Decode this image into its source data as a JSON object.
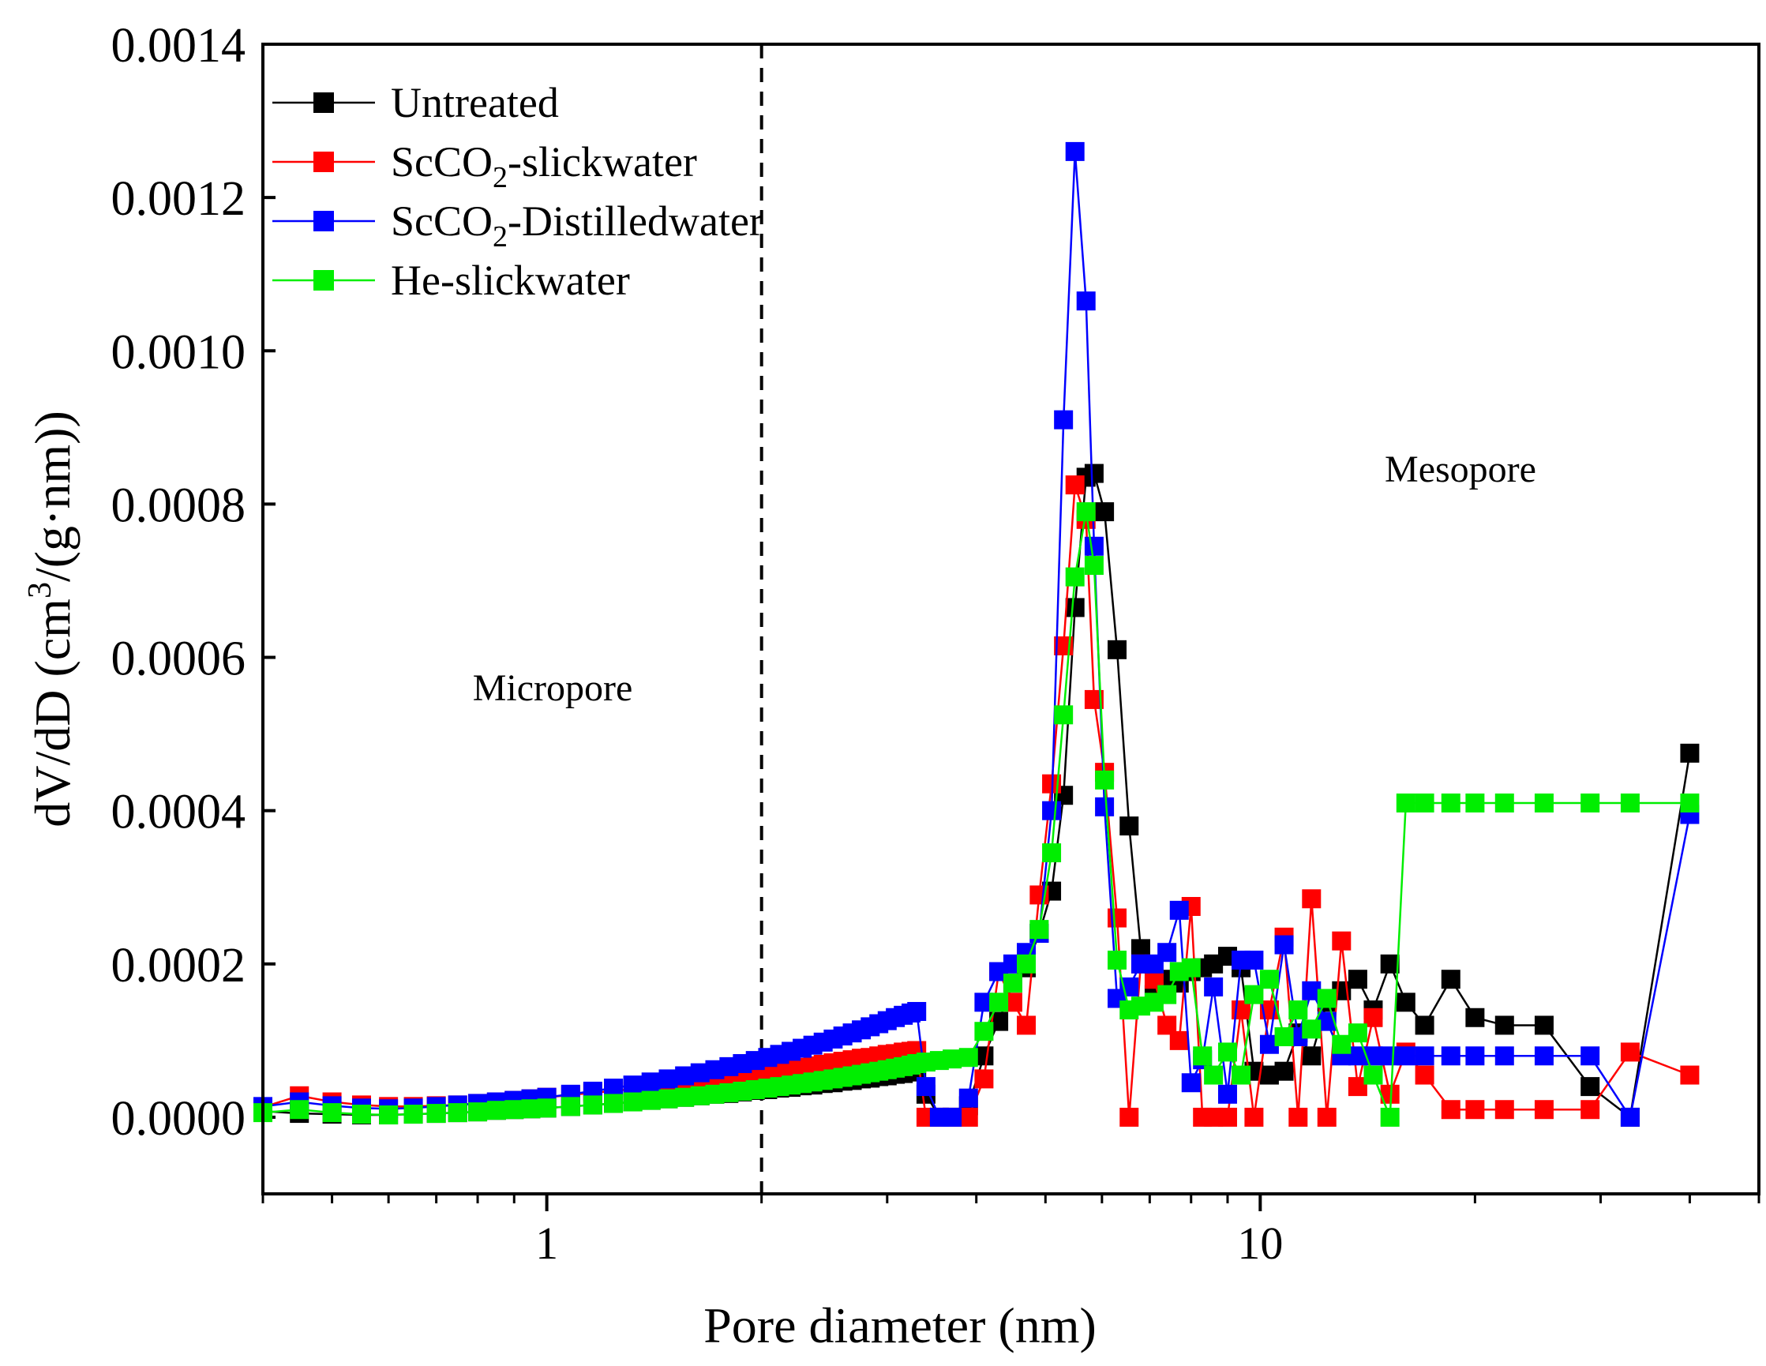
{
  "chart_data": {
    "type": "line",
    "title": "",
    "xlabel": "Pore diameter (nm)",
    "ylabel_parts": {
      "main": "dV/dD (cm",
      "sup": "3",
      "rest": "/(g·nm))"
    },
    "x_scale": "log",
    "xlim": [
      0.4,
      50
    ],
    "ylim": [
      -0.0001,
      0.0014
    ],
    "x_ticks": [
      "1",
      "10"
    ],
    "x_tick_values": [
      1,
      10
    ],
    "y_ticks": [
      "0.0000",
      "0.0002",
      "0.0004",
      "0.0006",
      "0.0008",
      "0.0010",
      "0.0012",
      "0.0014"
    ],
    "y_tick_values": [
      0,
      0.0002,
      0.0004,
      0.0006,
      0.0008,
      0.001,
      0.0012,
      0.0014
    ],
    "divider_x": 2,
    "annotations": {
      "micropore": "Micropore",
      "mesopore": "Mesopore"
    },
    "series": [
      {
        "name": "Untreated",
        "legend": {
          "pre": "Untreated",
          "sub": "",
          "post": ""
        },
        "color": "#000000",
        "x": [
          0.4,
          0.45,
          0.5,
          0.55,
          0.6,
          0.65,
          0.7,
          0.75,
          0.8,
          0.85,
          0.9,
          0.95,
          1.0,
          1.08,
          1.16,
          1.24,
          1.32,
          1.4,
          1.48,
          1.56,
          1.64,
          1.72,
          1.8,
          1.88,
          1.96,
          2.04,
          2.12,
          2.2,
          2.28,
          2.36,
          2.44,
          2.52,
          2.6,
          2.68,
          2.76,
          2.84,
          2.92,
          3.0,
          3.08,
          3.16,
          3.24,
          3.3,
          3.4,
          3.55,
          3.7,
          3.9,
          4.1,
          4.3,
          4.5,
          4.7,
          4.9,
          5.1,
          5.3,
          5.5,
          5.7,
          5.85,
          6.05,
          6.3,
          6.55,
          6.8,
          7.1,
          7.4,
          7.7,
          8.0,
          8.3,
          8.6,
          9.0,
          9.4,
          9.8,
          10.3,
          10.8,
          11.3,
          11.8,
          12.4,
          13.0,
          13.7,
          14.4,
          15.2,
          16.0,
          17.0,
          18.5,
          20.0,
          22.0,
          25.0,
          29.0,
          33.0,
          40.0
        ],
        "y": [
          8e-06,
          5e-06,
          4e-06,
          3e-06,
          3e-06,
          4e-06,
          5e-06,
          6e-06,
          7e-06,
          9e-06,
          1e-05,
          1.1e-05,
          1.2e-05,
          1.4e-05,
          1.6e-05,
          1.8e-05,
          2e-05,
          2.2e-05,
          2.4e-05,
          2.6e-05,
          2.8e-05,
          3e-05,
          3.1e-05,
          3.3e-05,
          3.5e-05,
          3.6e-05,
          3.8e-05,
          3.9e-05,
          4.1e-05,
          4.2e-05,
          4.4e-05,
          4.5e-05,
          4.7e-05,
          4.8e-05,
          5e-05,
          5.1e-05,
          5.3e-05,
          5.4e-05,
          5.6e-05,
          5.7e-05,
          5.9e-05,
          6e-05,
          3e-05,
          0.0,
          0.0,
          1.5e-05,
          8e-05,
          0.000125,
          0.000175,
          0.000195,
          0.00024,
          0.000295,
          0.00042,
          0.000665,
          0.000835,
          0.00084,
          0.00079,
          0.00061,
          0.00038,
          0.00022,
          0.00016,
          0.00018,
          0.000175,
          0.00019,
          0.000195,
          0.0002,
          0.00021,
          0.000195,
          6e-05,
          5.5e-05,
          6e-05,
          0.00011,
          8e-05,
          0.00015,
          0.000165,
          0.00018,
          0.00014,
          0.0002,
          0.00015,
          0.00012,
          0.00018,
          0.00013,
          0.00012,
          0.00012,
          4e-05,
          0.0,
          0.000475
        ]
      },
      {
        "name": "ScCO2-slickwater",
        "legend": {
          "pre": "ScCO",
          "sub": "2",
          "post": "-slickwater"
        },
        "color": "#ff0000",
        "x": [
          0.4,
          0.45,
          0.5,
          0.55,
          0.6,
          0.65,
          0.7,
          0.75,
          0.8,
          0.85,
          0.9,
          0.95,
          1.0,
          1.08,
          1.16,
          1.24,
          1.32,
          1.4,
          1.48,
          1.56,
          1.64,
          1.72,
          1.8,
          1.88,
          1.96,
          2.04,
          2.12,
          2.2,
          2.28,
          2.36,
          2.44,
          2.52,
          2.6,
          2.68,
          2.76,
          2.84,
          2.92,
          3.0,
          3.08,
          3.16,
          3.24,
          3.3,
          3.4,
          3.55,
          3.7,
          3.9,
          4.1,
          4.3,
          4.5,
          4.7,
          4.9,
          5.1,
          5.3,
          5.5,
          5.7,
          5.85,
          6.05,
          6.3,
          6.55,
          6.8,
          7.1,
          7.4,
          7.7,
          8.0,
          8.3,
          8.6,
          9.0,
          9.4,
          9.8,
          10.3,
          10.8,
          11.3,
          11.8,
          12.4,
          13.0,
          13.7,
          14.4,
          15.2,
          16.0,
          17.0,
          18.5,
          20.0,
          22.0,
          25.0,
          29.0,
          33.0,
          40.0
        ],
        "y": [
          1.3e-05,
          2.8e-05,
          2e-05,
          1.6e-05,
          1.4e-05,
          1.4e-05,
          1.5e-05,
          1.6e-05,
          1.8e-05,
          2e-05,
          2.2e-05,
          2.4e-05,
          2.6e-05,
          2.9e-05,
          3.2e-05,
          3.4e-05,
          3.7e-05,
          4e-05,
          4.2e-05,
          4.5e-05,
          4.7e-05,
          5e-05,
          5.2e-05,
          5.4e-05,
          5.6e-05,
          5.9e-05,
          6.1e-05,
          6.3e-05,
          6.5e-05,
          6.7e-05,
          6.9e-05,
          7.1e-05,
          7.3e-05,
          7.5e-05,
          7.7e-05,
          7.8e-05,
          8e-05,
          8.2e-05,
          8.3e-05,
          8.5e-05,
          8.6e-05,
          8.7e-05,
          0.0,
          0.0,
          0.0,
          0.0,
          5e-05,
          0.00019,
          0.00015,
          0.00012,
          0.00029,
          0.000435,
          0.000615,
          0.000825,
          0.00078,
          0.000545,
          0.00045,
          0.00026,
          0.0,
          0.0002,
          0.00018,
          0.00012,
          0.0001,
          0.000275,
          0.0,
          0.0,
          0.0,
          0.00014,
          0.0,
          0.00014,
          0.000235,
          0.0,
          0.000285,
          0.0,
          0.00023,
          4e-05,
          0.00013,
          3e-05,
          8.5e-05,
          5.5e-05,
          1e-05,
          1e-05,
          1e-05,
          1e-05,
          1e-05,
          8.5e-05,
          5.5e-05
        ]
      },
      {
        "name": "ScCO2-Distilledwater",
        "legend": {
          "pre": "ScCO",
          "sub": "2",
          "post": "-Distilledwater"
        },
        "color": "#0000ff",
        "x": [
          0.4,
          0.45,
          0.5,
          0.55,
          0.6,
          0.65,
          0.7,
          0.75,
          0.8,
          0.85,
          0.9,
          0.95,
          1.0,
          1.08,
          1.16,
          1.24,
          1.32,
          1.4,
          1.48,
          1.56,
          1.64,
          1.72,
          1.8,
          1.88,
          1.96,
          2.04,
          2.12,
          2.2,
          2.28,
          2.36,
          2.44,
          2.52,
          2.6,
          2.68,
          2.76,
          2.84,
          2.92,
          3.0,
          3.08,
          3.16,
          3.24,
          3.3,
          3.4,
          3.55,
          3.7,
          3.9,
          4.1,
          4.3,
          4.5,
          4.7,
          4.9,
          5.1,
          5.3,
          5.5,
          5.7,
          5.85,
          6.05,
          6.3,
          6.55,
          6.8,
          7.1,
          7.4,
          7.7,
          8.0,
          8.3,
          8.6,
          9.0,
          9.4,
          9.8,
          10.3,
          10.8,
          11.3,
          11.8,
          12.4,
          13.0,
          13.7,
          14.4,
          15.2,
          16.0,
          17.0,
          18.5,
          20.0,
          22.0,
          25.0,
          29.0,
          33.0,
          40.0
        ],
        "y": [
          1.4e-05,
          2e-05,
          1.5e-05,
          1.2e-05,
          1.1e-05,
          1.2e-05,
          1.4e-05,
          1.6e-05,
          1.8e-05,
          2e-05,
          2.2e-05,
          2.4e-05,
          2.6e-05,
          3e-05,
          3.4e-05,
          3.8e-05,
          4.2e-05,
          4.6e-05,
          5e-05,
          5.4e-05,
          5.8e-05,
          6.2e-05,
          6.6e-05,
          7e-05,
          7.4e-05,
          7.8e-05,
          8.2e-05,
          8.6e-05,
          9e-05,
          9.4e-05,
          9.8e-05,
          0.000102,
          0.000106,
          0.00011,
          0.000114,
          0.000118,
          0.000122,
          0.000126,
          0.00013,
          0.000133,
          0.000136,
          0.000138,
          4e-05,
          0.0,
          0.0,
          2.5e-05,
          0.00015,
          0.00019,
          0.0002,
          0.000215,
          0.00024,
          0.0004,
          0.00091,
          0.00126,
          0.001065,
          0.000745,
          0.000405,
          0.000155,
          0.00017,
          0.0002,
          0.0002,
          0.000215,
          0.00027,
          4.5e-05,
          7.5e-05,
          0.00017,
          3e-05,
          0.000205,
          0.000205,
          9.5e-05,
          0.000225,
          0.000105,
          0.000165,
          0.000125,
          8e-05,
          8e-05,
          8e-05,
          8e-05,
          8e-05,
          8e-05,
          8e-05,
          8e-05,
          8e-05,
          8e-05,
          8e-05,
          0.0,
          0.000395
        ]
      },
      {
        "name": "He-slickwater",
        "legend": {
          "pre": "He-slickwater",
          "sub": "",
          "post": ""
        },
        "color": "#00ee00",
        "x": [
          0.4,
          0.45,
          0.5,
          0.55,
          0.6,
          0.65,
          0.7,
          0.75,
          0.8,
          0.85,
          0.9,
          0.95,
          1.0,
          1.08,
          1.16,
          1.24,
          1.32,
          1.4,
          1.48,
          1.56,
          1.64,
          1.72,
          1.8,
          1.88,
          1.96,
          2.04,
          2.12,
          2.2,
          2.28,
          2.36,
          2.44,
          2.52,
          2.6,
          2.68,
          2.76,
          2.84,
          2.92,
          3.0,
          3.08,
          3.16,
          3.24,
          3.3,
          3.4,
          3.55,
          3.7,
          3.9,
          4.1,
          4.3,
          4.5,
          4.7,
          4.9,
          5.1,
          5.3,
          5.5,
          5.7,
          5.85,
          6.05,
          6.3,
          6.55,
          6.8,
          7.1,
          7.4,
          7.7,
          8.0,
          8.3,
          8.6,
          9.0,
          9.4,
          9.8,
          10.3,
          10.8,
          11.3,
          11.8,
          12.4,
          13.0,
          13.7,
          14.4,
          15.2,
          16.0,
          17.0,
          18.5,
          20.0,
          22.0,
          25.0,
          29.0,
          33.0,
          40.0
        ],
        "y": [
          6e-06,
          1e-05,
          6e-06,
          4e-06,
          3e-06,
          4e-06,
          5e-06,
          6e-06,
          7e-06,
          9e-06,
          1e-05,
          1.1e-05,
          1.2e-05,
          1.4e-05,
          1.6e-05,
          1.8e-05,
          2e-05,
          2.2e-05,
          2.4e-05,
          2.6e-05,
          2.8e-05,
          3e-05,
          3.2e-05,
          3.4e-05,
          3.6e-05,
          3.8e-05,
          4e-05,
          4.2e-05,
          4.4e-05,
          4.6e-05,
          4.8e-05,
          5e-05,
          5.2e-05,
          5.4e-05,
          5.6e-05,
          5.8e-05,
          6e-05,
          6.2e-05,
          6.4e-05,
          6.6e-05,
          6.8e-05,
          7e-05,
          7.2e-05,
          7.4e-05,
          7.6e-05,
          7.8e-05,
          0.000112,
          0.00015,
          0.000175,
          0.0002,
          0.000245,
          0.000345,
          0.000525,
          0.000705,
          0.00079,
          0.00072,
          0.00044,
          0.000205,
          0.00014,
          0.000145,
          0.00015,
          0.00016,
          0.00019,
          0.000195,
          8e-05,
          5.5e-05,
          8.5e-05,
          5.5e-05,
          0.00016,
          0.00018,
          0.000105,
          0.00014,
          0.000115,
          0.000155,
          9.5e-05,
          0.00011,
          5.5e-05,
          0.0,
          0.00041,
          0.00041,
          0.00041,
          0.00041,
          0.00041,
          0.00041,
          0.00041,
          0.00041,
          0.00041
        ]
      }
    ]
  }
}
